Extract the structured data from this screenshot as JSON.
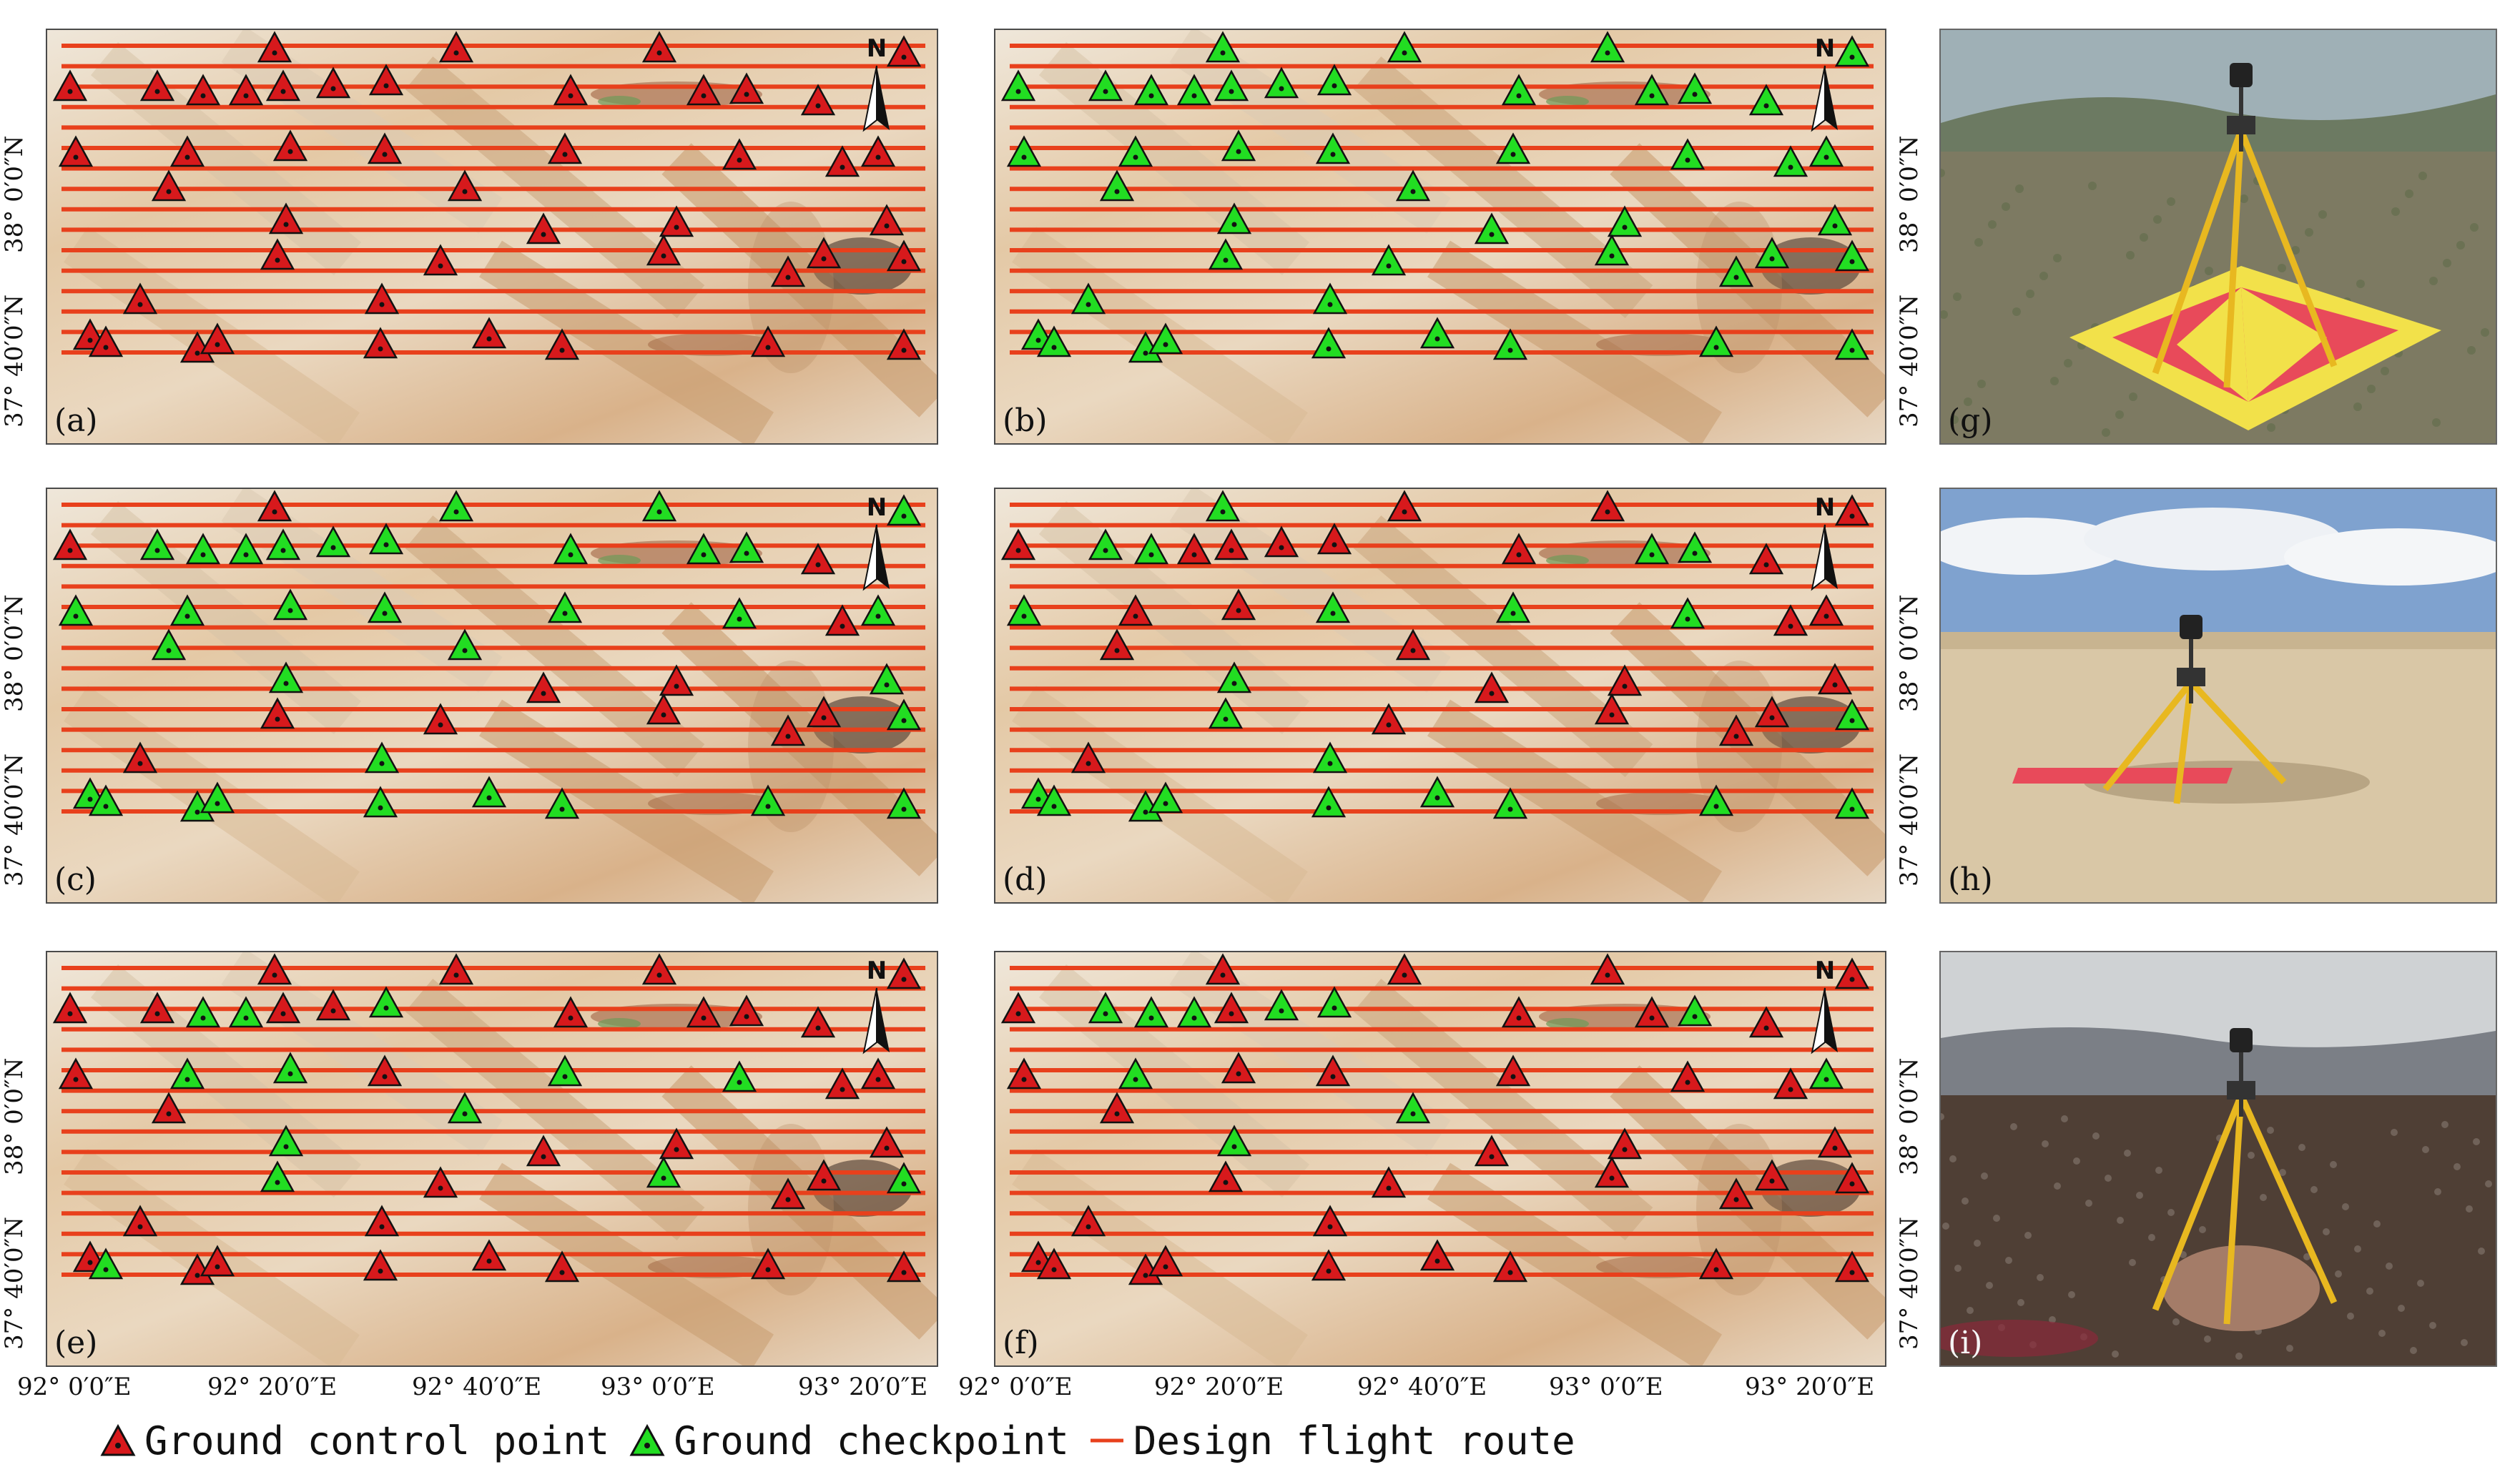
{
  "panels": [
    {
      "label": "(a)",
      "gcp": "all",
      "chk": []
    },
    {
      "label": "(b)",
      "gcp": "none",
      "chk": []
    },
    {
      "label": "(c)",
      "gcp_idx": [
        0,
        4,
        14,
        22,
        26,
        27,
        29,
        30,
        31,
        32,
        33,
        35
      ],
      "mode": "list"
    },
    {
      "label": "(d)",
      "gcp_idx": [
        1,
        2,
        3,
        4,
        7,
        8,
        9,
        10,
        11,
        14,
        16,
        17,
        21,
        22,
        23,
        24,
        26,
        27,
        28,
        30,
        31,
        32,
        33,
        35
      ],
      "mode": "list"
    },
    {
      "label": "(e)",
      "chk_idx": [
        6,
        7,
        10,
        16,
        17,
        19,
        20,
        24,
        25,
        29,
        31,
        34,
        38
      ],
      "mode": "chklist"
    },
    {
      "label": "(f)",
      "chk_idx": [
        5,
        6,
        7,
        9,
        10,
        13,
        16,
        21,
        24,
        25
      ],
      "mode": "chklist"
    }
  ],
  "y_labels": [
    "37° 40′0″N",
    "38° 0′0″N"
  ],
  "y_labels_right": [
    "37° 40′0″N",
    "38° 0′0″N"
  ],
  "x_labels": [
    "92° 0′0″E",
    "92° 20′0″E",
    "92° 40′0″E",
    "93° 0′0″E",
    "93° 20′0″E"
  ],
  "north_letter": "N",
  "photos": [
    {
      "label": "(g)",
      "sky": "#9fb0b6"
    },
    {
      "label": "(h)",
      "sky": "#7fa2cf"
    },
    {
      "label": "(i)",
      "sky": "#cfd2d4"
    }
  ],
  "legend": {
    "gcp": "Ground control point",
    "chk": "Ground checkpoint",
    "route": "Design flight route"
  },
  "colors": {
    "gcp": "#d7191c",
    "chk": "#22dd22",
    "route": "#e8401c"
  }
}
